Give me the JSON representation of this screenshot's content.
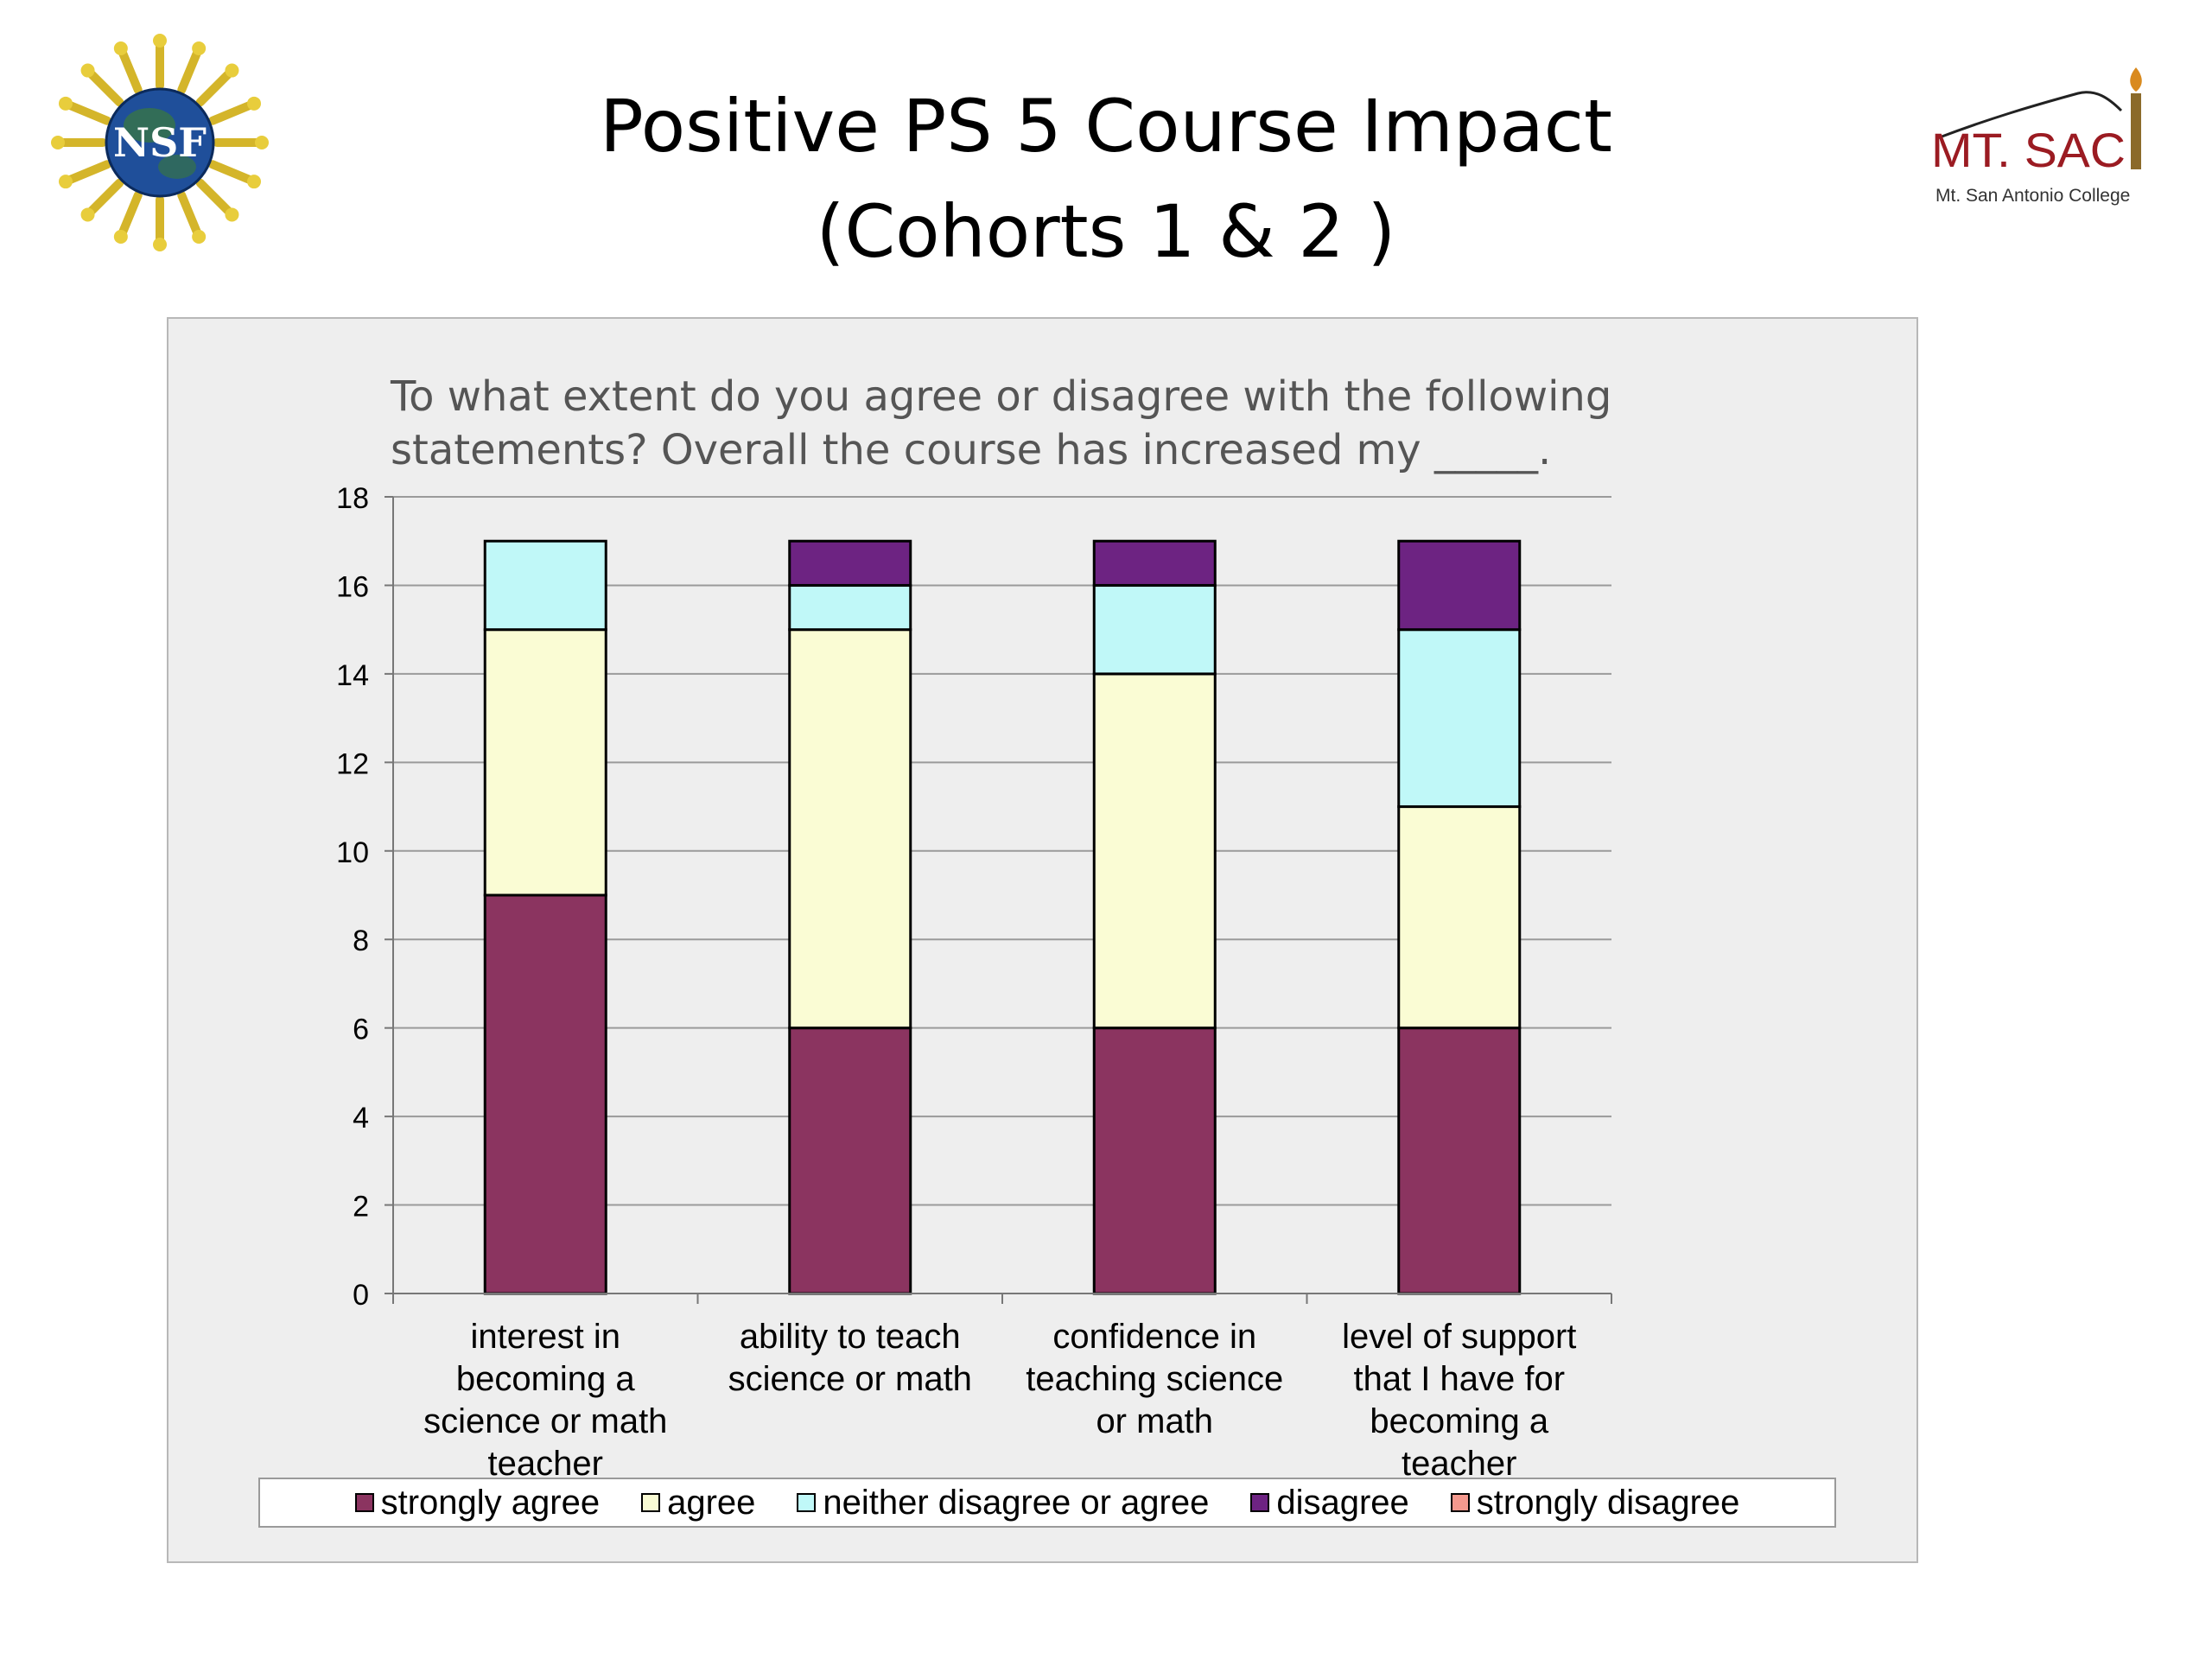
{
  "slide": {
    "title_line1": "Positive PS 5 Course Impact",
    "title_line2": "(Cohorts 1 & 2 )",
    "logo_left_text": "NSF",
    "logo_right_text": "MT. SAC",
    "logo_right_subtext": "Mt. San Antonio College"
  },
  "chart_data": {
    "type": "bar",
    "stacked": true,
    "title_lines": [
      "To what extent do you agree or disagree with the following",
      "statements? Overall the course has increased my _____."
    ],
    "categories": [
      [
        "interest in",
        "becoming a",
        "science or math",
        "teacher"
      ],
      [
        "ability to teach",
        "science or math"
      ],
      [
        "confidence in",
        "teaching science",
        "or math"
      ],
      [
        "level of support",
        "that I have for",
        "becoming a",
        "teacher"
      ]
    ],
    "series": [
      {
        "name": "strongly agree",
        "color": "#8b3460",
        "values": [
          9,
          6,
          6,
          6
        ]
      },
      {
        "name": "agree",
        "color": "#fafcd4",
        "values": [
          6,
          9,
          8,
          5
        ]
      },
      {
        "name": "neither disagree or agree",
        "color": "#c0f8f8",
        "values": [
          2,
          1,
          2,
          4
        ]
      },
      {
        "name": "disagree",
        "color": "#6d2382",
        "values": [
          0,
          1,
          1,
          2
        ]
      },
      {
        "name": "strongly disagree",
        "color": "#f4998e",
        "values": [
          0,
          0,
          0,
          0
        ]
      }
    ],
    "ylim": [
      0,
      18
    ],
    "yticks": [
      0,
      2,
      4,
      6,
      8,
      10,
      12,
      14,
      16,
      18
    ],
    "grid": true,
    "legend_position": "bottom"
  }
}
